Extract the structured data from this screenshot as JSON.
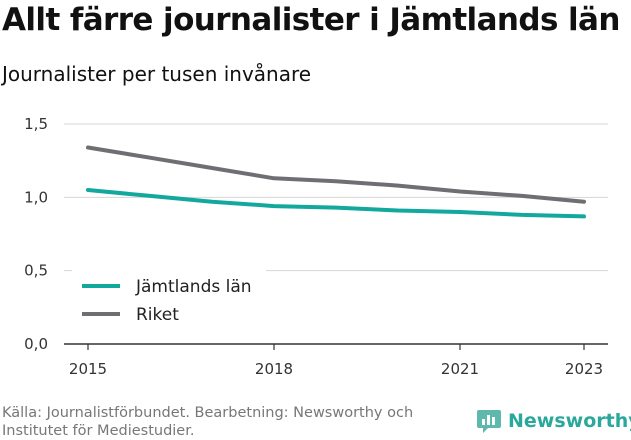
{
  "chart_data": {
    "type": "line",
    "title": "Allt färre journalister i Jämtlands län",
    "subtitle": "Journalister per tusen invånare",
    "x": [
      2015,
      2016,
      2017,
      2018,
      2019,
      2020,
      2021,
      2022,
      2023
    ],
    "x_tick_labels": [
      "2015",
      "2018",
      "2021",
      "2023"
    ],
    "x_ticks": [
      2015,
      2018,
      2021,
      2023
    ],
    "y_tick_labels": [
      "0,0",
      "0,5",
      "1,0",
      "1,5"
    ],
    "y_ticks": [
      0,
      0.5,
      1.0,
      1.5
    ],
    "ylim": [
      0,
      1.5
    ],
    "grid": true,
    "legend_position": "bottom-left",
    "series": [
      {
        "name": "Jämtlands län",
        "color": "#13a89e",
        "values": [
          1.05,
          1.01,
          0.97,
          0.94,
          0.93,
          0.91,
          0.9,
          0.88,
          0.87
        ]
      },
      {
        "name": "Riket",
        "color": "#6e6e73",
        "values": [
          1.34,
          1.27,
          1.2,
          1.13,
          1.11,
          1.08,
          1.04,
          1.01,
          0.97
        ]
      }
    ]
  },
  "footer": {
    "source": "Källa: Journalistförbundet. Bearbetning: Newsworthy och Institutet för Mediestudier.",
    "brand": "Newsworthy"
  }
}
